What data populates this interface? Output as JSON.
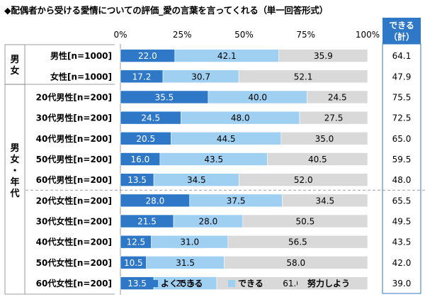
{
  "chart_data": {
    "type": "bar",
    "stacked": true,
    "orientation": "horizontal",
    "title": "◆配偶者から受ける愛情についての評価_愛の言葉を言ってくれる（単一回答形式）",
    "axis_ticks": [
      "0%",
      "25%",
      "50%",
      "75%",
      "100%"
    ],
    "xlim": [
      0,
      100
    ],
    "categories": [
      "男性[n=1000]",
      "女性[n=1000]",
      "20代男性[n=200]",
      "30代男性[n=200]",
      "40代男性[n=200]",
      "50代男性[n=200]",
      "60代男性[n=200]",
      "20代女性[n=200]",
      "30代女性[n=200]",
      "40代女性[n=200]",
      "50代女性[n=200]",
      "60代女性[n=200]"
    ],
    "groups": [
      {
        "label": "男女",
        "rows": [
          0,
          1
        ]
      },
      {
        "label": "男女・年代",
        "rows": [
          2,
          3,
          4,
          5,
          6,
          7,
          8,
          9,
          10,
          11
        ]
      }
    ],
    "series": [
      {
        "name": "よくできる",
        "color": "#2e78c7",
        "text_color": "#ffffff",
        "values": [
          22.0,
          17.2,
          35.5,
          24.5,
          20.5,
          16.0,
          13.5,
          28.0,
          21.5,
          12.5,
          10.5,
          13.5
        ]
      },
      {
        "name": "できる",
        "color": "#9fd0f2",
        "text_color": "#000000",
        "values": [
          42.1,
          30.7,
          40.0,
          48.0,
          44.5,
          43.5,
          34.5,
          37.5,
          28.0,
          31.0,
          31.5,
          25.5
        ]
      },
      {
        "name": "努力しよう",
        "color": "#d9d9d9",
        "text_color": "#000000",
        "values": [
          35.9,
          52.1,
          24.5,
          27.5,
          35.0,
          40.5,
          52.0,
          34.5,
          50.5,
          56.5,
          58.0,
          61.0
        ]
      }
    ],
    "total_column": {
      "header": [
        "できる",
        "（計）"
      ],
      "values": [
        "64.1",
        "47.9",
        "75.5",
        "72.5",
        "65.0",
        "59.5",
        "48.0",
        "65.5",
        "49.5",
        "43.5",
        "42.0",
        "39.0"
      ]
    },
    "legend_position": "bottom"
  }
}
